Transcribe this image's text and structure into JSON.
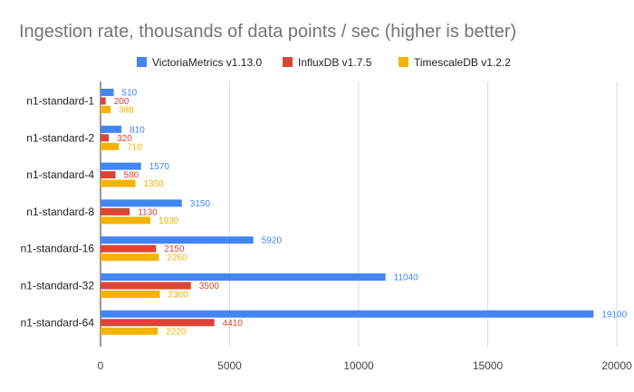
{
  "chart_data": {
    "type": "bar",
    "orientation": "horizontal",
    "title": "Ingestion rate, thousands of data points / sec (higher is better)",
    "legend_position": "top",
    "categories": [
      "n1-standard-1",
      "n1-standard-2",
      "n1-standard-4",
      "n1-standard-8",
      "n1-standard-16",
      "n1-standard-32",
      "n1-standard-64"
    ],
    "series": [
      {
        "name": "VictoriaMetrics v1.13.0",
        "color": "#4285f4",
        "values": [
          510,
          810,
          1570,
          3150,
          5920,
          11040,
          19100
        ]
      },
      {
        "name": "InfluxDB v1.7.5",
        "color": "#db4437",
        "values": [
          200,
          320,
          580,
          1130,
          2150,
          3500,
          4410
        ]
      },
      {
        "name": "TimescaleDB v1.2.2",
        "color": "#f4b400",
        "values": [
          388,
          710,
          1350,
          1930,
          2260,
          2300,
          2220
        ]
      }
    ],
    "xlim": [
      0,
      20000
    ],
    "xticks": [
      "0",
      "5000",
      "10000",
      "15000",
      "20000"
    ],
    "grid": true
  }
}
